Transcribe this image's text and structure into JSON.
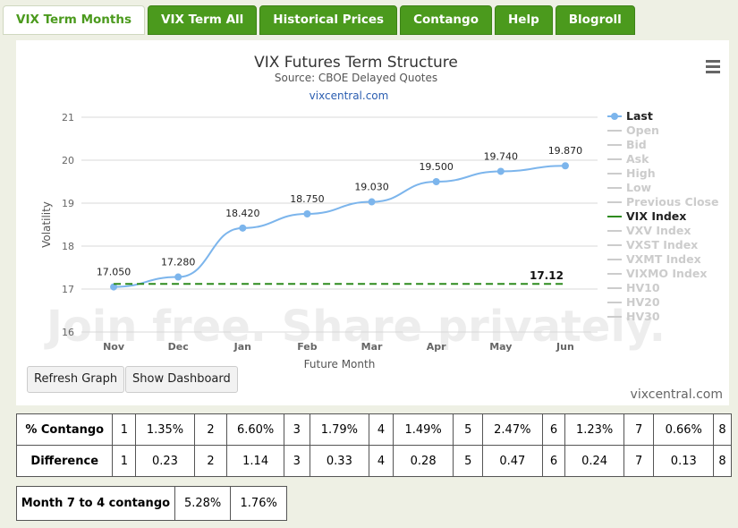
{
  "tabs": [
    "VIX Term Months",
    "VIX Term All",
    "Historical Prices",
    "Contango",
    "Help",
    "Blogroll"
  ],
  "active_tab": 0,
  "chart_data": {
    "type": "line",
    "title": "VIX Futures Term Structure",
    "subtitle": "Source: CBOE Delayed Quotes",
    "link": "vixcentral.com",
    "credit": "vixcentral.com",
    "watermark": "Join free. Share privately.",
    "y_label": "Volatility",
    "x_label": "Future Month",
    "categories": [
      "Nov",
      "Dec",
      "Jan",
      "Feb",
      "Mar",
      "Apr",
      "May",
      "Jun"
    ],
    "ylim": [
      16,
      21
    ],
    "yticks": [
      16,
      17,
      18,
      19,
      20,
      21
    ],
    "grid": true,
    "series": [
      {
        "name": "Last",
        "color": "#7cb5ec",
        "visible": true,
        "values": [
          17.05,
          17.28,
          18.42,
          18.75,
          19.03,
          19.5,
          19.74,
          19.87
        ],
        "value_labels": [
          "17.050",
          "17.280",
          "18.420",
          "18.750",
          "19.030",
          "19.500",
          "19.740",
          "19.870"
        ]
      },
      {
        "name": "Open",
        "visible": false
      },
      {
        "name": "Bid",
        "visible": false
      },
      {
        "name": "Ask",
        "visible": false
      },
      {
        "name": "High",
        "visible": false
      },
      {
        "name": "Low",
        "visible": false
      },
      {
        "name": "Previous Close",
        "visible": false
      },
      {
        "name": "VIX Index",
        "color": "#2e8b1e",
        "visible": true,
        "value": 17.12,
        "value_label": "17.12"
      },
      {
        "name": "VXV Index",
        "visible": false
      },
      {
        "name": "VXST Index",
        "visible": false
      },
      {
        "name": "VXMT Index",
        "visible": false
      },
      {
        "name": "VIXMO Index",
        "visible": false
      },
      {
        "name": "HV10",
        "visible": false
      },
      {
        "name": "HV20",
        "visible": false
      },
      {
        "name": "HV30",
        "visible": false
      }
    ]
  },
  "buttons": [
    "Refresh Graph",
    "Show Dashboard"
  ],
  "contango_table": {
    "rows": [
      [
        "% Contango",
        "1",
        "1.35%",
        "2",
        "6.60%",
        "3",
        "1.79%",
        "4",
        "1.49%",
        "5",
        "2.47%",
        "6",
        "1.23%",
        "7",
        "0.66%",
        "8"
      ],
      [
        "Difference",
        "1",
        "0.23",
        "2",
        "1.14",
        "3",
        "0.33",
        "4",
        "0.28",
        "5",
        "0.47",
        "6",
        "0.24",
        "7",
        "0.13",
        "8"
      ]
    ]
  },
  "month_table": {
    "rows": [
      [
        "Month 7 to 4 contango",
        "5.28%",
        "1.76%"
      ]
    ]
  }
}
